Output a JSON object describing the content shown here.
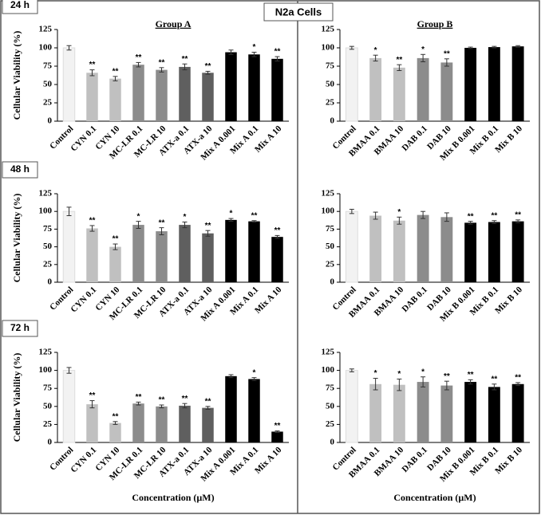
{
  "figure_title": "N2a Cells",
  "chart_data": [
    {
      "type": "bar",
      "panel_label": "24 h",
      "title": "Group A",
      "y_label": "Cellular Viability (%)",
      "categories": [
        "Control",
        "CYN 0.1",
        "CYN 10",
        "MC-LR 0.1",
        "MC-LR 10",
        "ATX-a 0.1",
        "ATX-a 10",
        "Mix A 0.001",
        "Mix A 0.1",
        "Mix A 10"
      ],
      "values": [
        100,
        66,
        58,
        77,
        70,
        74,
        66,
        94,
        91,
        85
      ],
      "errors": [
        3,
        4,
        3,
        3,
        3,
        4,
        2,
        3,
        3,
        3
      ],
      "annotations": [
        null,
        "**",
        "**",
        "**",
        "**",
        "**",
        "**",
        null,
        "*",
        "**"
      ],
      "colors": [
        "#f2f2f2",
        "#c0c0c0",
        "#c0c0c0",
        "#8c8c8c",
        "#8c8c8c",
        "#5f5f5f",
        "#5f5f5f",
        "#000000",
        "#000000",
        "#000000"
      ],
      "ylim": [
        0,
        125
      ],
      "yticks": [
        0,
        25,
        50,
        75,
        100,
        125
      ]
    },
    {
      "type": "bar",
      "title": "Group B",
      "categories": [
        "Control",
        "BMAA 0.1",
        "BMAA 10",
        "DAB 0.1",
        "DAB 10",
        "Mix B 0.001",
        "Mix B 0.1",
        "Mix B 10"
      ],
      "values": [
        100,
        86,
        73,
        86,
        80,
        100,
        101,
        102
      ],
      "errors": [
        2,
        4,
        4,
        5,
        5,
        1,
        1,
        1
      ],
      "annotations": [
        null,
        "*",
        "**",
        "*",
        "**",
        null,
        null,
        null
      ],
      "colors": [
        "#f2f2f2",
        "#c0c0c0",
        "#c0c0c0",
        "#8c8c8c",
        "#8c8c8c",
        "#000000",
        "#000000",
        "#000000"
      ],
      "ylim": [
        0,
        125
      ],
      "yticks": [
        0,
        25,
        50,
        75,
        100,
        125
      ]
    },
    {
      "type": "bar",
      "panel_label": "48 h",
      "y_label": "Cellular Viability (%)",
      "categories": [
        "Control",
        "CYN 0.1",
        "CYN 10",
        "MC-LR 0.1",
        "MC-LR 10",
        "ATX-a 0.1",
        "ATX-a 10",
        "Mix A 0.001",
        "Mix A 0.1",
        "Mix A 10"
      ],
      "values": [
        100,
        76,
        50,
        81,
        72,
        81,
        69,
        88,
        86,
        64
      ],
      "errors": [
        6,
        4,
        4,
        5,
        5,
        4,
        4,
        2,
        1,
        2
      ],
      "annotations": [
        null,
        "**",
        "**",
        "*",
        "**",
        "*",
        "**",
        "*",
        "**",
        "**"
      ],
      "colors": [
        "#f2f2f2",
        "#c0c0c0",
        "#c0c0c0",
        "#8c8c8c",
        "#8c8c8c",
        "#5f5f5f",
        "#5f5f5f",
        "#000000",
        "#000000",
        "#000000"
      ],
      "ylim": [
        0,
        125
      ],
      "yticks": [
        0,
        25,
        50,
        75,
        100,
        125
      ]
    },
    {
      "type": "bar",
      "categories": [
        "Control",
        "BMAA 0.1",
        "BMAA 10",
        "DAB 0.1",
        "DAB 10",
        "Mix B 0.001",
        "Mix B 0.1",
        "Mix B 10"
      ],
      "values": [
        100,
        94,
        87,
        95,
        92,
        84,
        85,
        86
      ],
      "errors": [
        3,
        5,
        5,
        5,
        6,
        2,
        2,
        2
      ],
      "annotations": [
        null,
        null,
        "*",
        null,
        null,
        "**",
        "**",
        "**"
      ],
      "colors": [
        "#f2f2f2",
        "#c0c0c0",
        "#c0c0c0",
        "#8c8c8c",
        "#8c8c8c",
        "#000000",
        "#000000",
        "#000000"
      ],
      "ylim": [
        0,
        125
      ],
      "yticks": [
        0,
        25,
        50,
        75,
        100,
        125
      ]
    },
    {
      "type": "bar",
      "panel_label": "72 h",
      "y_label": "Cellular Viability (%)",
      "x_label": "Concentration (µM)",
      "categories": [
        "Control",
        "CYN 0.1",
        "CYN 10",
        "MC-LR 0.1",
        "MC-LR 10",
        "ATX-a 0.1",
        "ATX-a 10",
        "Mix A 0.001",
        "Mix A 0.1",
        "Mix A 10"
      ],
      "values": [
        100,
        53,
        27,
        54,
        50,
        51,
        48,
        92,
        88,
        15
      ],
      "errors": [
        4,
        5,
        2,
        2,
        2,
        3,
        2,
        2,
        2,
        1
      ],
      "annotations": [
        null,
        "**",
        "**",
        "**",
        "**",
        "**",
        "**",
        null,
        "*",
        "**"
      ],
      "colors": [
        "#f2f2f2",
        "#c0c0c0",
        "#c0c0c0",
        "#8c8c8c",
        "#8c8c8c",
        "#5f5f5f",
        "#5f5f5f",
        "#000000",
        "#000000",
        "#000000"
      ],
      "ylim": [
        0,
        125
      ],
      "yticks": [
        0,
        25,
        50,
        75,
        100,
        125
      ]
    },
    {
      "type": "bar",
      "x_label": "Concentration (µM)",
      "categories": [
        "Control",
        "BMAA 0.1",
        "BMAA 10",
        "DAB 0.1",
        "DAB 10",
        "Mix B 0.001",
        "Mix B 0.1",
        "Mix B 10"
      ],
      "values": [
        100,
        81,
        80,
        84,
        79,
        84,
        77,
        81
      ],
      "errors": [
        2,
        8,
        8,
        7,
        6,
        3,
        4,
        2
      ],
      "annotations": [
        null,
        "*",
        "*",
        "*",
        "**",
        "**",
        "**",
        "**"
      ],
      "colors": [
        "#f2f2f2",
        "#c0c0c0",
        "#c0c0c0",
        "#8c8c8c",
        "#8c8c8c",
        "#000000",
        "#000000",
        "#000000"
      ],
      "ylim": [
        0,
        125
      ],
      "yticks": [
        0,
        25,
        50,
        75,
        100,
        125
      ]
    }
  ]
}
